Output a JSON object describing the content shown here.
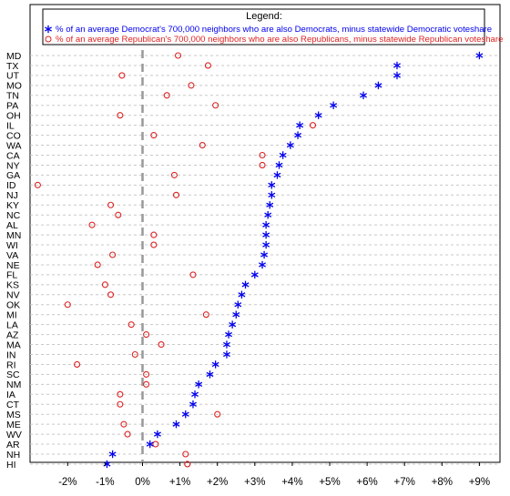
{
  "chart_data": {
    "type": "scatter",
    "legend": {
      "title": "Legend:",
      "placement": "top",
      "entries": [
        {
          "symbol": "*",
          "color": "#0000ee",
          "label": "% of an average Democrat's 700,000 neighbors who are also Democrats, minus statewide Democratic voteshare"
        },
        {
          "symbol": "o",
          "color": "#dd2222",
          "label": "% of an average Republican's 700,000 neighbors who are also Republicans, minus statewide Republican voteshare"
        }
      ]
    },
    "states": [
      "MD",
      "TX",
      "UT",
      "MO",
      "TN",
      "PA",
      "OH",
      "IL",
      "CO",
      "WA",
      "CA",
      "NY",
      "GA",
      "ID",
      "NJ",
      "KY",
      "NC",
      "AL",
      "MN",
      "WI",
      "VA",
      "NE",
      "FL",
      "KS",
      "NV",
      "OK",
      "MI",
      "LA",
      "AZ",
      "MA",
      "IN",
      "RI",
      "SC",
      "NM",
      "IA",
      "CT",
      "MS",
      "ME",
      "WV",
      "AR",
      "NH",
      "HI"
    ],
    "series": [
      {
        "name": "% of an average Democrat's 700,000 neighbors who are also Democrats, minus statewide Democratic voteshare",
        "marker": "*",
        "color": "#0000ee",
        "values": [
          9.0,
          6.8,
          6.8,
          6.3,
          5.9,
          5.1,
          4.7,
          4.2,
          4.15,
          3.95,
          3.75,
          3.65,
          3.6,
          3.45,
          3.45,
          3.4,
          3.35,
          3.3,
          3.3,
          3.3,
          3.25,
          3.2,
          3.0,
          2.75,
          2.65,
          2.55,
          2.5,
          2.4,
          2.3,
          2.25,
          2.25,
          1.95,
          1.8,
          1.5,
          1.4,
          1.35,
          1.15,
          0.9,
          0.4,
          0.2,
          -0.8,
          -0.95
        ]
      },
      {
        "name": "% of an average Republican's 700,000 neighbors who are also Republicans, minus statewide Republican voteshare",
        "marker": "o",
        "color": "#dd2222",
        "values": [
          0.95,
          1.75,
          -0.55,
          1.3,
          0.65,
          1.95,
          -0.6,
          4.55,
          0.3,
          1.6,
          3.2,
          3.2,
          0.85,
          -2.8,
          0.9,
          -0.85,
          -0.65,
          -1.35,
          0.3,
          0.3,
          -0.8,
          -1.2,
          1.35,
          -1.0,
          -0.85,
          -2.0,
          1.7,
          -0.3,
          0.1,
          0.5,
          -0.2,
          -1.75,
          0.1,
          0.1,
          -0.6,
          -0.6,
          2.0,
          -0.5,
          -0.4,
          0.35,
          1.15,
          1.2
        ]
      }
    ],
    "x_ticks": [
      "-2%",
      "-1%",
      "0%",
      "+1%",
      "+2%",
      "+3%",
      "+4%",
      "+5%",
      "+6%",
      "+7%",
      "+8%",
      "+9%"
    ],
    "xlim": [
      -2.8,
      9.2
    ],
    "reference_line": 0,
    "grid": "horizontal dashed"
  }
}
